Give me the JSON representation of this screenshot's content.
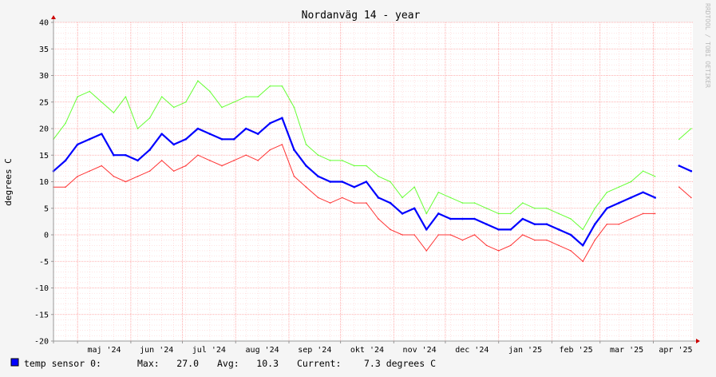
{
  "window": {
    "title": "Nordanväg 14 - year"
  },
  "chart_data": {
    "type": "line",
    "title": "Nordanväg 14 - year",
    "ylabel": "degrees C",
    "credit": "RRDTOOL / TOBI OETIKER",
    "ylim": [
      -20,
      40
    ],
    "y_ticks": [
      -20,
      -15,
      -10,
      -5,
      0,
      5,
      10,
      15,
      20,
      25,
      30,
      35,
      40
    ],
    "x_ticks": [
      "maj '24",
      "jun '24",
      "jul '24",
      "aug '24",
      "sep '24",
      "okt '24",
      "nov '24",
      "dec '24",
      "jan '25",
      "feb '25",
      "mar '25",
      "apr '25"
    ],
    "x_tick_month_starts": [
      "2024-05-01",
      "2024-06-01",
      "2024-07-01",
      "2024-08-01",
      "2024-09-01",
      "2024-10-01",
      "2024-11-01",
      "2024-12-01",
      "2025-01-01",
      "2025-02-01",
      "2025-03-01",
      "2025-04-01"
    ],
    "x_range": [
      "2024-04-17",
      "2025-04-24"
    ],
    "grid": true,
    "colors": {
      "avg": "#0000ff",
      "max": "#66ff33",
      "min": "#ff3333",
      "grid": "#ff9999",
      "axis": "#999999",
      "arrow": "#cc0000"
    },
    "weekly_x": [
      "2024-04-17",
      "2024-04-24",
      "2024-05-01",
      "2024-05-08",
      "2024-05-15",
      "2024-05-22",
      "2024-05-29",
      "2024-06-05",
      "2024-06-12",
      "2024-06-19",
      "2024-06-26",
      "2024-07-03",
      "2024-07-10",
      "2024-07-17",
      "2024-07-24",
      "2024-07-31",
      "2024-08-07",
      "2024-08-14",
      "2024-08-21",
      "2024-08-28",
      "2024-09-04",
      "2024-09-11",
      "2024-09-18",
      "2024-09-25",
      "2024-10-02",
      "2024-10-09",
      "2024-10-16",
      "2024-10-23",
      "2024-10-30",
      "2024-11-06",
      "2024-11-13",
      "2024-11-20",
      "2024-11-27",
      "2024-12-04",
      "2024-12-11",
      "2024-12-18",
      "2024-12-25",
      "2025-01-01",
      "2025-01-08",
      "2025-01-15",
      "2025-01-22",
      "2025-01-29",
      "2025-02-05",
      "2025-02-12",
      "2025-02-19",
      "2025-02-26",
      "2025-03-05",
      "2025-03-12",
      "2025-03-19",
      "2025-03-26",
      "2025-04-02",
      "2025-04-09",
      "2025-04-16",
      "2025-04-23"
    ],
    "series": [
      {
        "name": "max",
        "color": "#66ff33",
        "values": [
          18,
          21,
          26,
          27,
          25,
          23,
          26,
          20,
          22,
          26,
          24,
          25,
          29,
          27,
          24,
          25,
          26,
          26,
          28,
          28,
          24,
          17,
          15,
          14,
          14,
          13,
          13,
          11,
          10,
          7,
          9,
          4,
          8,
          7,
          6,
          6,
          5,
          4,
          4,
          6,
          5,
          5,
          4,
          3,
          1,
          5,
          8,
          9,
          10,
          12,
          11,
          null,
          18,
          20
        ]
      },
      {
        "name": "temp sensor 0",
        "color": "#0000ff",
        "values": [
          12,
          14,
          17,
          18,
          19,
          15,
          15,
          14,
          16,
          19,
          17,
          18,
          20,
          19,
          18,
          18,
          20,
          19,
          21,
          22,
          16,
          13,
          11,
          10,
          10,
          9,
          10,
          7,
          6,
          4,
          5,
          1,
          4,
          3,
          3,
          3,
          2,
          1,
          1,
          3,
          2,
          2,
          1,
          0,
          -2,
          2,
          5,
          6,
          7,
          8,
          7,
          null,
          13,
          12
        ]
      },
      {
        "name": "min",
        "color": "#ff3333",
        "values": [
          9,
          9,
          11,
          12,
          13,
          11,
          10,
          11,
          12,
          14,
          12,
          13,
          15,
          14,
          13,
          14,
          15,
          14,
          16,
          17,
          11,
          9,
          7,
          6,
          7,
          6,
          6,
          3,
          1,
          0,
          0,
          -3,
          0,
          0,
          -1,
          0,
          -2,
          -3,
          -2,
          0,
          -1,
          -1,
          -2,
          -3,
          -5,
          -1,
          2,
          2,
          3,
          4,
          4,
          null,
          9,
          7
        ]
      }
    ]
  },
  "legend": {
    "label": "temp sensor 0:",
    "max_label": "Max:",
    "max_value": "27.0",
    "avg_label": "Avg:",
    "avg_value": "10.3",
    "current_label": "Current:",
    "current_value": "7.3 degrees C",
    "swatch_color": "#0000ff"
  }
}
